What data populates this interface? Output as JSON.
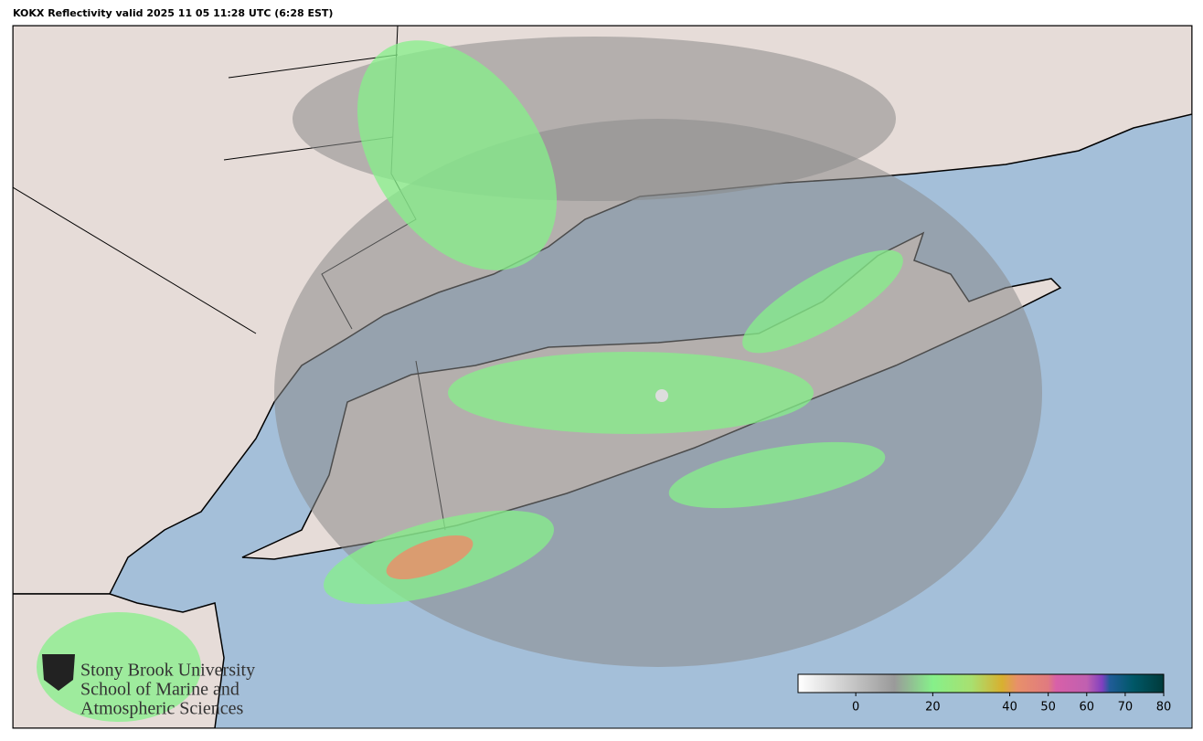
{
  "title": "KOKX Reflectivity valid 2025 11 05 11:28 UTC (6:28 EST)",
  "logo": {
    "lines": [
      "Stony Brook University",
      "School of Marine and",
      "Atmospheric Sciences"
    ]
  },
  "colorbar": {
    "lim": [
      -15,
      80
    ],
    "ticks": [
      0,
      20,
      40,
      50,
      60,
      70,
      80
    ],
    "colormap": [
      {
        "value": -15,
        "color": "#ffffff"
      },
      {
        "value": 10,
        "color": "#9a9a9a"
      },
      {
        "value": 20,
        "color": "#86f08a"
      },
      {
        "value": 30,
        "color": "#a8e070"
      },
      {
        "value": 38,
        "color": "#d8b030"
      },
      {
        "value": 42,
        "color": "#e8906a"
      },
      {
        "value": 50,
        "color": "#e07a80"
      },
      {
        "value": 52,
        "color": "#d860a8"
      },
      {
        "value": 60,
        "color": "#c060b0"
      },
      {
        "value": 64,
        "color": "#8040c0"
      },
      {
        "value": 66,
        "color": "#205c98"
      },
      {
        "value": 72,
        "color": "#005868"
      },
      {
        "value": 80,
        "color": "#003a3a"
      }
    ]
  }
}
